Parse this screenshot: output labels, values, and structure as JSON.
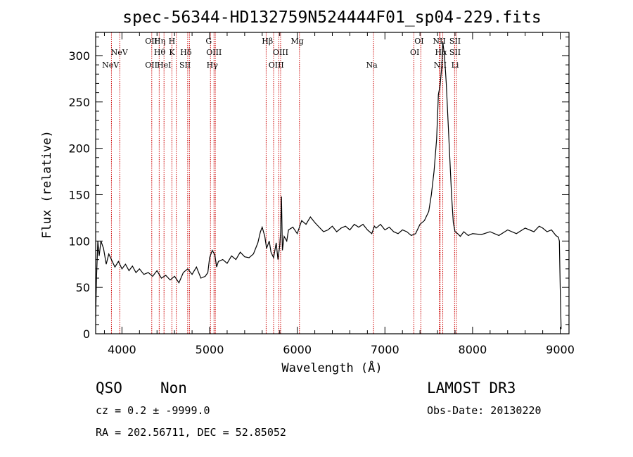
{
  "chart_data": {
    "type": "line",
    "title": "spec-56344-HD132759N524444F01_sp04-229.fits",
    "xlabel": "Wavelength (Å)",
    "ylabel": "Flux (relative)",
    "xlim": [
      3700,
      9100
    ],
    "ylim": [
      0,
      325
    ],
    "xticks": [
      4000,
      5000,
      6000,
      7000,
      8000,
      9000
    ],
    "yticks": [
      0,
      50,
      100,
      150,
      200,
      250,
      300
    ],
    "grid": false,
    "spectrum_color": "#000000",
    "marker_color": "#cc0000",
    "series": [
      {
        "x": [
          3700,
          3710,
          3725,
          3740,
          3760,
          3790,
          3820,
          3850,
          3880,
          3920,
          3960,
          4000,
          4040,
          4080,
          4120,
          4160,
          4200,
          4250,
          4300,
          4350,
          4400,
          4450,
          4500,
          4550,
          4600,
          4650,
          4700,
          4750,
          4800,
          4850,
          4900,
          4950,
          4980,
          5000,
          5030,
          5060,
          5080,
          5100,
          5150,
          5200,
          5250,
          5300,
          5350,
          5400,
          5450,
          5500,
          5550,
          5580,
          5600,
          5630,
          5650,
          5680,
          5700,
          5730,
          5760,
          5780,
          5800,
          5810,
          5820,
          5830,
          5850,
          5880,
          5900,
          5950,
          6000,
          6050,
          6100,
          6150,
          6200,
          6250,
          6300,
          6350,
          6400,
          6450,
          6500,
          6550,
          6600,
          6650,
          6700,
          6750,
          6800,
          6850,
          6880,
          6900,
          6950,
          7000,
          7050,
          7100,
          7150,
          7200,
          7250,
          7300,
          7350,
          7400,
          7450,
          7500,
          7530,
          7560,
          7590,
          7610,
          7630,
          7650,
          7660,
          7680,
          7700,
          7720,
          7740,
          7760,
          7780,
          7800,
          7830,
          7860,
          7900,
          7950,
          8000,
          8100,
          8200,
          8300,
          8400,
          8500,
          8600,
          8700,
          8760,
          8800,
          8850,
          8900,
          8950,
          8980,
          8990,
          9000,
          9010
        ],
        "values": [
          18,
          60,
          100,
          84,
          100,
          92,
          75,
          86,
          80,
          72,
          78,
          70,
          75,
          68,
          73,
          66,
          70,
          64,
          66,
          62,
          68,
          60,
          63,
          58,
          62,
          55,
          66,
          70,
          64,
          72,
          60,
          62,
          66,
          82,
          90,
          85,
          72,
          78,
          80,
          76,
          84,
          80,
          88,
          83,
          82,
          86,
          98,
          110,
          115,
          105,
          92,
          100,
          88,
          82,
          98,
          80,
          95,
          110,
          148,
          90,
          105,
          100,
          112,
          115,
          108,
          122,
          118,
          126,
          120,
          115,
          110,
          112,
          116,
          110,
          114,
          116,
          112,
          118,
          115,
          118,
          112,
          108,
          116,
          114,
          118,
          112,
          115,
          110,
          108,
          112,
          110,
          106,
          108,
          118,
          122,
          132,
          150,
          175,
          210,
          258,
          268,
          290,
          315,
          300,
          270,
          230,
          190,
          150,
          120,
          110,
          108,
          105,
          110,
          106,
          108,
          107,
          110,
          106,
          112,
          108,
          114,
          110,
          116,
          114,
          110,
          112,
          106,
          104,
          100,
          50,
          5
        ]
      }
    ],
    "annotations": [
      {
        "label": "NeV",
        "x": 3870,
        "row": 3
      },
      {
        "label": "NeV",
        "x": 3970,
        "row": 2
      },
      {
        "label": "OII",
        "x": 4335,
        "row": 1
      },
      {
        "label": "OII",
        "x": 4335,
        "row": 3
      },
      {
        "label": "Hη",
        "x": 4430,
        "row": 1
      },
      {
        "label": "Hθ",
        "x": 4430,
        "row": 2
      },
      {
        "label": "HeI",
        "x": 4480,
        "row": 3
      },
      {
        "label": "H",
        "x": 4570,
        "row": 1
      },
      {
        "label": "K",
        "x": 4570,
        "row": 2
      },
      {
        "label": "Hδ",
        "x": 4730,
        "row": 2
      },
      {
        "label": "SII",
        "x": 4720,
        "row": 3
      },
      {
        "label": "G",
        "x": 4990,
        "row": 1
      },
      {
        "label": "OIII",
        "x": 5050,
        "row": 2
      },
      {
        "label": "Hγ",
        "x": 5030,
        "row": 3
      },
      {
        "label": "Hβ",
        "x": 5660,
        "row": 1
      },
      {
        "label": "OIII",
        "x": 5810,
        "row": 2
      },
      {
        "label": "OIII",
        "x": 5760,
        "row": 3
      },
      {
        "label": "Mg",
        "x": 6000,
        "row": 1
      },
      {
        "label": "Na",
        "x": 6850,
        "row": 3
      },
      {
        "label": "OI",
        "x": 7390,
        "row": 1
      },
      {
        "label": "OI",
        "x": 7340,
        "row": 2
      },
      {
        "label": "NII",
        "x": 7620,
        "row": 1
      },
      {
        "label": "Hα",
        "x": 7640,
        "row": 2
      },
      {
        "label": "NII",
        "x": 7630,
        "row": 3
      },
      {
        "label": "SII",
        "x": 7800,
        "row": 1
      },
      {
        "label": "SII",
        "x": 7800,
        "row": 2
      },
      {
        "label": "Li",
        "x": 7800,
        "row": 3
      }
    ],
    "marker_lines": [
      3880,
      3975,
      4340,
      4425,
      4480,
      4570,
      4620,
      4750,
      4770,
      5010,
      5050,
      5065,
      5645,
      5730,
      5790,
      5810,
      6025,
      6870,
      7330,
      7410,
      7620,
      7630,
      7660,
      7795,
      7815
    ]
  },
  "info": {
    "class": "QSO",
    "subclass": "Non",
    "survey": "LAMOST DR3",
    "cz": "cz = 0.2 ± -9999.0",
    "obs_date": "Obs-Date: 20130220",
    "coords": "RA = 202.56711, DEC =  52.85052"
  }
}
